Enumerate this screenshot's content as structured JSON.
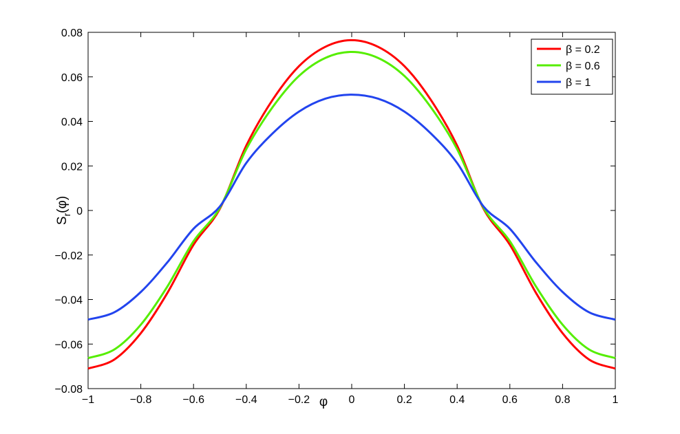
{
  "chart_data": {
    "type": "line",
    "xlabel": "φ",
    "ylabel": "S",
    "ylabel_sub": "r",
    "ylabel_suffix": "(φ)",
    "xlim": [
      -1,
      1
    ],
    "ylim": [
      -0.08,
      0.08
    ],
    "xticks": [
      -1,
      -0.8,
      -0.6,
      -0.4,
      -0.2,
      0,
      0.2,
      0.4,
      0.6,
      0.8,
      1
    ],
    "xtick_labels": [
      "−1",
      "−0.8",
      "−0.6",
      "−0.4",
      "−0.2",
      "0",
      "0.2",
      "0.4",
      "0.6",
      "0.8",
      "1"
    ],
    "yticks": [
      -0.08,
      -0.06,
      -0.04,
      -0.02,
      0,
      0.02,
      0.04,
      0.06,
      0.08
    ],
    "ytick_labels": [
      "−0.08",
      "−0.06",
      "−0.04",
      "−0.02",
      "0",
      "0.02",
      "0.04",
      "0.06",
      "0.08"
    ],
    "grid": false,
    "legend_position": "top-right",
    "series": [
      {
        "name": "β = 0.2",
        "color": "#ff0000",
        "x": [
          -1,
          -0.9,
          -0.8,
          -0.7,
          -0.6,
          -0.5,
          -0.4,
          -0.3,
          -0.2,
          -0.1,
          0,
          0.1,
          0.2,
          0.3,
          0.4,
          0.5,
          0.6,
          0.7,
          0.8,
          0.9,
          1
        ],
        "y": [
          -0.071,
          -0.0669,
          -0.0551,
          -0.0372,
          -0.0154,
          0.0008,
          0.0291,
          0.0497,
          0.0648,
          0.0735,
          0.0765,
          0.0735,
          0.0648,
          0.0497,
          0.0291,
          0.0008,
          -0.0154,
          -0.0372,
          -0.0551,
          -0.0669,
          -0.071
        ]
      },
      {
        "name": "β = 0.6",
        "color": "#55ee00",
        "x": [
          -1,
          -0.9,
          -0.8,
          -0.7,
          -0.6,
          -0.5,
          -0.4,
          -0.3,
          -0.2,
          -0.1,
          0,
          0.1,
          0.2,
          0.3,
          0.4,
          0.5,
          0.6,
          0.7,
          0.8,
          0.9,
          1
        ],
        "y": [
          -0.0663,
          -0.0624,
          -0.0513,
          -0.0343,
          -0.0138,
          0.0012,
          0.0275,
          0.0464,
          0.0604,
          0.0685,
          0.0712,
          0.0685,
          0.0604,
          0.0464,
          0.0275,
          0.0012,
          -0.0138,
          -0.0343,
          -0.0513,
          -0.0624,
          -0.0663
        ]
      },
      {
        "name": "β = 1",
        "color": "#2244ee",
        "x": [
          -1,
          -0.9,
          -0.8,
          -0.7,
          -0.6,
          -0.5,
          -0.4,
          -0.3,
          -0.2,
          -0.1,
          0,
          0.1,
          0.2,
          0.3,
          0.4,
          0.5,
          0.6,
          0.7,
          0.8,
          0.9,
          1
        ],
        "y": [
          -0.049,
          -0.0457,
          -0.0366,
          -0.0234,
          -0.0082,
          0.0018,
          0.0213,
          0.0346,
          0.0444,
          0.0502,
          0.052,
          0.0502,
          0.0444,
          0.0346,
          0.0213,
          0.0018,
          -0.0082,
          -0.0234,
          -0.0366,
          -0.0457,
          -0.049
        ]
      }
    ]
  }
}
